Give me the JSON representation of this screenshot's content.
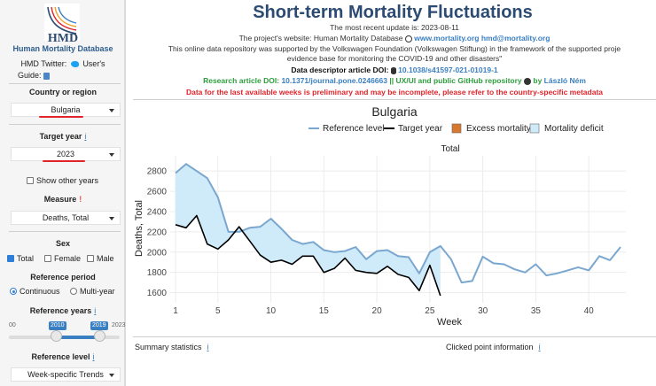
{
  "sidebar": {
    "logo_text": "HMD",
    "db_name": "Human Mortality Database",
    "twitter_label": "HMD Twitter:",
    "users_label": "User's",
    "guide_label": "Guide:",
    "country_label": "Country or region",
    "country_value": "Bulgaria",
    "target_year_label": "Target year",
    "target_year_value": "2023",
    "show_other_years": "Show other years",
    "measure_label": "Measure",
    "measure_value": "Deaths, Total",
    "sex_label": "Sex",
    "sex_options": [
      "Total",
      "Female",
      "Male"
    ],
    "ref_period_label": "Reference period",
    "ref_period_options": [
      "Continuous",
      "Multi-year"
    ],
    "ref_years_label": "Reference years",
    "ref_years_min_tag": "00",
    "ref_years_from": "2010",
    "ref_years_to": "2019",
    "ref_years_max_tag": "2023",
    "ref_level_label": "Reference level",
    "ref_level_value": "Week-specific Trends",
    "info_glyph": "i",
    "warn_glyph": "!"
  },
  "header": {
    "title": "Short-term Mortality Fluctuations",
    "update_text": "The most recent update is: 2023-08-11",
    "website_prefix": "The project's website: Human Mortality Database",
    "website_url": "www.mortality.org",
    "website_email": "hmd@mortality.org",
    "support_line1": "This online data repository was supported by the Volkswagen Foundation (Volkswagen Stiftung) in the framework of the supported proje",
    "support_line2": "evidence base for monitoring the COVID-19 and other disasters\"",
    "descriptor_prefix": "Data descriptor article DOI:",
    "descriptor_doi": "10.1038/s41597-021-01019-1",
    "research_prefix": "Research article DOI:",
    "research_doi": "10.1371/journal.pone.0246663",
    "uxui_text": "|| UX/UI and public GitHub repository",
    "author_by": "by",
    "author_name": "László Ném",
    "warning_text": "Data for the last available weeks is preliminary and may be incomplete, please refer to the country-specific metadata"
  },
  "chart_title": "Bulgaria",
  "chart_data": {
    "type": "line",
    "title": "Bulgaria",
    "subtitle": "Total",
    "xlabel": "Week",
    "ylabel": "Deaths, Total",
    "xlim": [
      0.5,
      43.5
    ],
    "ylim": [
      1500,
      2950
    ],
    "x_ticks": [
      1,
      5,
      10,
      15,
      20,
      25,
      30,
      35,
      40
    ],
    "y_ticks": [
      1600,
      1800,
      2000,
      2200,
      2400,
      2600,
      2800
    ],
    "legend": [
      {
        "name": "Reference level",
        "color": "#7aa7cf"
      },
      {
        "name": "Target year",
        "color": "#000000"
      },
      {
        "name": "Excess mortality",
        "color": "#d8782e"
      },
      {
        "name": "Mortality deficit",
        "color": "#cfeaf8"
      }
    ],
    "series": [
      {
        "name": "Reference level",
        "x": [
          1,
          2,
          3,
          4,
          5,
          6,
          7,
          8,
          9,
          10,
          11,
          12,
          13,
          14,
          15,
          16,
          17,
          18,
          19,
          20,
          21,
          22,
          23,
          24,
          25,
          26,
          27,
          28,
          29,
          30,
          31,
          32,
          33,
          34,
          35,
          36,
          37,
          38,
          39,
          40,
          41,
          42,
          43
        ],
        "values": [
          2780,
          2870,
          2800,
          2730,
          2540,
          2200,
          2200,
          2240,
          2250,
          2330,
          2230,
          2120,
          2080,
          2100,
          2020,
          2000,
          2010,
          2050,
          1930,
          2010,
          2020,
          1960,
          1950,
          1790,
          2000,
          2060,
          1930,
          1700,
          1715,
          1955,
          1890,
          1880,
          1830,
          1800,
          1880,
          1770,
          1790,
          1820,
          1850,
          1820,
          1960,
          1920,
          2050
        ]
      },
      {
        "name": "Target year",
        "x": [
          1,
          2,
          3,
          4,
          5,
          6,
          7,
          8,
          9,
          10,
          11,
          12,
          13,
          14,
          15,
          16,
          17,
          18,
          19,
          20,
          21,
          22,
          23,
          24,
          25,
          26
        ],
        "values": [
          2270,
          2240,
          2360,
          2080,
          2030,
          2120,
          2250,
          2110,
          1970,
          1900,
          1920,
          1880,
          1960,
          1960,
          1800,
          1840,
          1940,
          1820,
          1800,
          1790,
          1860,
          1780,
          1750,
          1620,
          1870,
          1570
        ]
      }
    ],
    "deficit_color": "#cfeaf8",
    "excess_color": "#d8782e"
  },
  "bottom": {
    "summary_label": "Summary statistics",
    "clicked_label": "Clicked point information"
  },
  "colors": {
    "accent": "#2c4b72",
    "link": "#3a7fc1",
    "warning": "#e0242a",
    "green": "#2e9e3e"
  }
}
